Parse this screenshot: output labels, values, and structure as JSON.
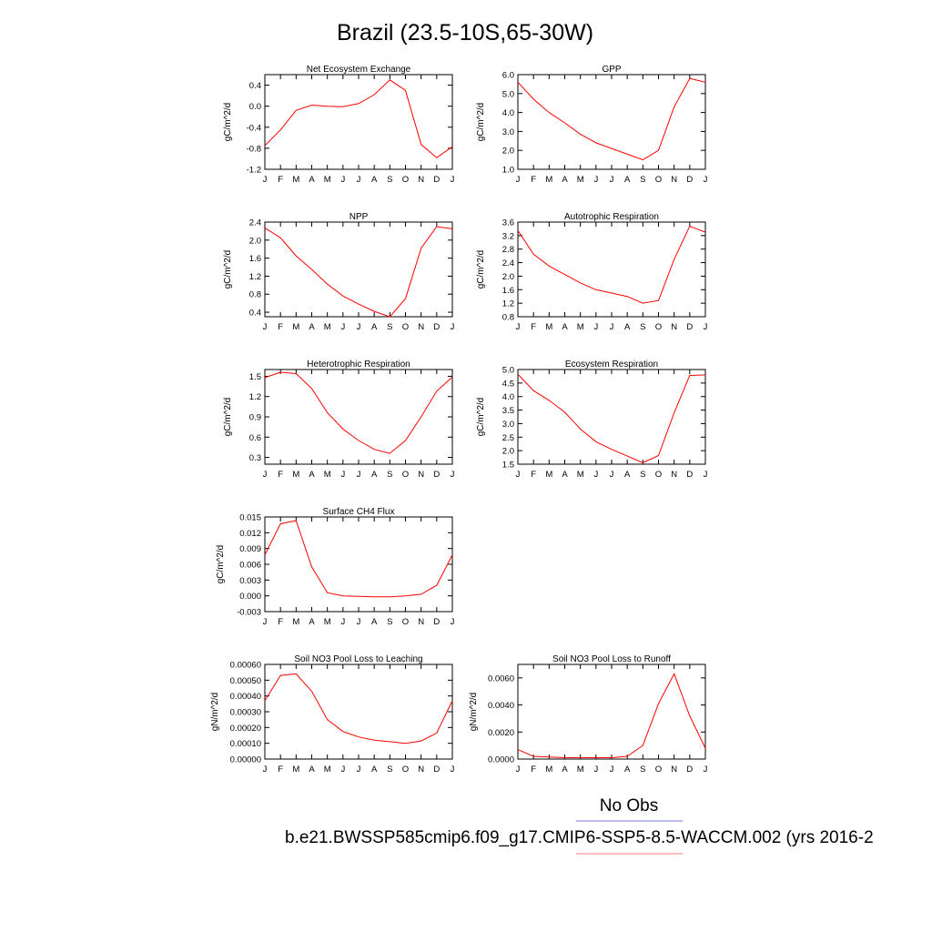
{
  "figure": {
    "title": "Brazil (23.5-10S,65-30W)",
    "legend": {
      "obs_label": "No Obs",
      "obs_color": "#7777ee",
      "model_label": "b.e21.BWSSP585cmip6.f09_g17.CMIP6-SSP5-8.5-WACCM.002 (yrs 2016-2",
      "model_color": "#ff7777"
    },
    "line_color": "#ff0000"
  },
  "chart_data": [
    {
      "type": "line",
      "title": "Net Ecosystem Exchange",
      "ylabel": "gC/m^2/d",
      "categories": [
        "J",
        "F",
        "M",
        "A",
        "M",
        "J",
        "J",
        "A",
        "S",
        "O",
        "N",
        "D",
        "J"
      ],
      "ylim": [
        -1.2,
        0.6
      ],
      "yticks": [
        "0.4",
        "0.0",
        "-0.4",
        "-0.8",
        "-1.2"
      ],
      "values": [
        -0.75,
        -0.45,
        -0.08,
        0.02,
        0.0,
        -0.01,
        0.05,
        0.22,
        0.5,
        0.3,
        -0.73,
        -0.98,
        -0.77
      ]
    },
    {
      "type": "line",
      "title": "GPP",
      "ylabel": "gC/m^2/d",
      "categories": [
        "J",
        "F",
        "M",
        "A",
        "M",
        "J",
        "J",
        "A",
        "S",
        "O",
        "N",
        "D",
        "J"
      ],
      "ylim": [
        1.0,
        6.0
      ],
      "yticks": [
        "6.0",
        "5.0",
        "4.0",
        "3.0",
        "2.0",
        "1.0"
      ],
      "values": [
        5.6,
        4.7,
        4.0,
        3.45,
        2.85,
        2.4,
        2.1,
        1.8,
        1.5,
        2.0,
        4.3,
        5.8,
        5.6
      ]
    },
    {
      "type": "line",
      "title": "NPP",
      "ylabel": "gC/m^2/d",
      "categories": [
        "J",
        "F",
        "M",
        "A",
        "M",
        "J",
        "J",
        "A",
        "S",
        "O",
        "N",
        "D",
        "J"
      ],
      "ylim": [
        0.3,
        2.4
      ],
      "yticks": [
        "2.4",
        "2.0",
        "1.6",
        "1.2",
        "0.8",
        "0.4"
      ],
      "values": [
        2.27,
        2.05,
        1.65,
        1.35,
        1.02,
        0.76,
        0.58,
        0.42,
        0.3,
        0.7,
        1.82,
        2.3,
        2.25
      ]
    },
    {
      "type": "line",
      "title": "Autotrophic Respiration",
      "ylabel": "gC/m^2/d",
      "categories": [
        "J",
        "F",
        "M",
        "A",
        "M",
        "J",
        "J",
        "A",
        "S",
        "O",
        "N",
        "D",
        "J"
      ],
      "ylim": [
        0.8,
        3.6
      ],
      "yticks": [
        "3.6",
        "3.2",
        "2.8",
        "2.4",
        "2.0",
        "1.6",
        "1.2",
        "0.8"
      ],
      "values": [
        3.35,
        2.65,
        2.3,
        2.05,
        1.8,
        1.6,
        1.5,
        1.4,
        1.2,
        1.28,
        2.5,
        3.48,
        3.3
      ]
    },
    {
      "type": "line",
      "title": "Heterotrophic Respiration",
      "ylabel": "gC/m^2/d",
      "categories": [
        "J",
        "F",
        "M",
        "A",
        "M",
        "J",
        "J",
        "A",
        "S",
        "O",
        "N",
        "D",
        "J"
      ],
      "ylim": [
        0.2,
        1.6
      ],
      "yticks": [
        "1.5",
        "1.2",
        "0.9",
        "0.6",
        "0.3"
      ],
      "values": [
        1.48,
        1.56,
        1.54,
        1.32,
        0.96,
        0.72,
        0.55,
        0.42,
        0.36,
        0.55,
        0.9,
        1.28,
        1.49
      ]
    },
    {
      "type": "line",
      "title": "Ecosystem Respiration",
      "ylabel": "gC/m^2/d",
      "categories": [
        "J",
        "F",
        "M",
        "A",
        "M",
        "J",
        "J",
        "A",
        "S",
        "O",
        "N",
        "D",
        "J"
      ],
      "ylim": [
        1.5,
        5.0
      ],
      "yticks": [
        "5.0",
        "4.5",
        "4.0",
        "3.5",
        "3.0",
        "2.5",
        "2.0",
        "1.5"
      ],
      "values": [
        4.83,
        4.22,
        3.86,
        3.42,
        2.8,
        2.33,
        2.05,
        1.8,
        1.55,
        1.82,
        3.4,
        4.78,
        4.8
      ]
    },
    {
      "type": "line",
      "title": "Surface CH4 Flux",
      "ylabel": "gC/m^2/d",
      "categories": [
        "J",
        "F",
        "M",
        "A",
        "M",
        "J",
        "J",
        "A",
        "S",
        "O",
        "N",
        "D",
        "J"
      ],
      "ylim": [
        -0.003,
        0.015
      ],
      "yticks": [
        "0.015",
        "0.012",
        "0.009",
        "0.006",
        "0.003",
        "0.000",
        "-0.003"
      ],
      "values": [
        0.0078,
        0.0137,
        0.0143,
        0.0055,
        0.0006,
        0.0,
        -0.0001,
        -0.0002,
        -0.0002,
        0.0,
        0.0003,
        0.002,
        0.0078
      ]
    },
    {
      "type": "line",
      "title": "Soil NO3 Pool Loss to Leaching",
      "ylabel": "gN/m^2/d",
      "categories": [
        "J",
        "F",
        "M",
        "A",
        "M",
        "J",
        "J",
        "A",
        "S",
        "O",
        "N",
        "D",
        "J"
      ],
      "ylim": [
        0.0,
        0.0006
      ],
      "yticks": [
        "0.00060",
        "0.00050",
        "0.00040",
        "0.00030",
        "0.00020",
        "0.00010",
        "0.00000"
      ],
      "values": [
        0.00037,
        0.00053,
        0.00054,
        0.00043,
        0.00025,
        0.000175,
        0.00014,
        0.00012,
        0.00011,
        0.0001,
        0.000115,
        0.000165,
        0.00037
      ]
    },
    {
      "type": "line",
      "title": "Soil NO3 Pool Loss to Runoff",
      "ylabel": "gN/m^2/d",
      "categories": [
        "J",
        "F",
        "M",
        "A",
        "M",
        "J",
        "J",
        "A",
        "S",
        "O",
        "N",
        "D",
        "J"
      ],
      "ylim": [
        0.0,
        0.007
      ],
      "yticks": [
        "0.0060",
        "0.0040",
        "0.0020",
        "0.0000"
      ],
      "values": [
        0.0007,
        0.0002,
        0.00015,
        0.0001,
        0.0001,
        0.0001,
        0.0001,
        0.0002,
        0.001,
        0.0041,
        0.0063,
        0.0032,
        0.0008
      ]
    }
  ]
}
